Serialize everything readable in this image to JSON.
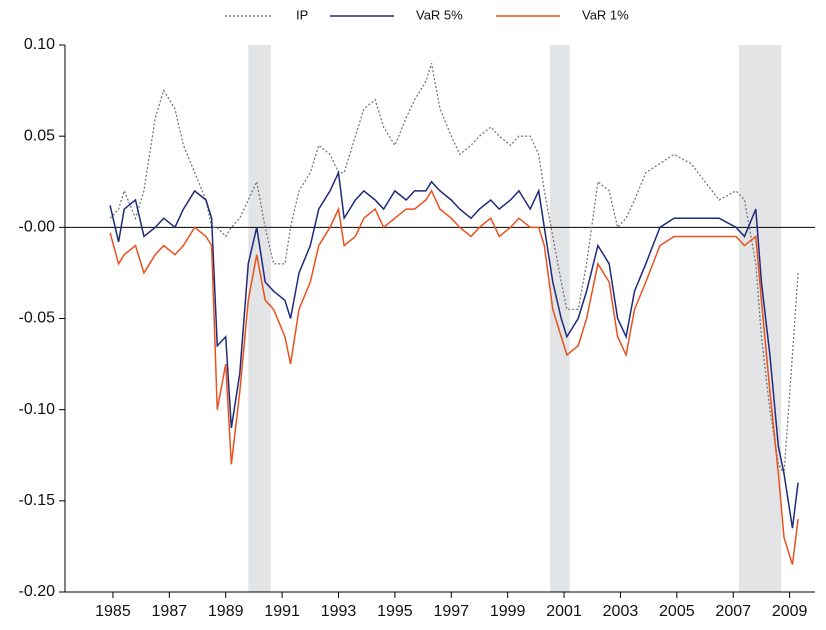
{
  "chart_data": {
    "type": "line",
    "x": [
      1984.9,
      1985.2,
      1985.4,
      1985.8,
      1986.1,
      1986.5,
      1986.8,
      1987.2,
      1987.5,
      1987.9,
      1988.3,
      1988.5,
      1988.7,
      1989.0,
      1989.2,
      1989.5,
      1989.8,
      1990.1,
      1990.4,
      1990.7,
      1991.1,
      1991.3,
      1991.6,
      1992.0,
      1992.3,
      1992.7,
      1993.0,
      1993.2,
      1993.6,
      1993.9,
      1994.3,
      1994.6,
      1995.0,
      1995.4,
      1995.7,
      1996.1,
      1996.3,
      1996.6,
      1997.0,
      1997.3,
      1997.7,
      1998.0,
      1998.4,
      1998.7,
      1999.1,
      1999.4,
      1999.8,
      2000.1,
      2000.3,
      2000.6,
      2000.9,
      2001.1,
      2001.5,
      2001.8,
      2002.2,
      2002.6,
      2002.9,
      2003.2,
      2003.5,
      2003.9,
      2004.4,
      2004.9,
      2005.5,
      2006.0,
      2006.5,
      2007.1,
      2007.4,
      2007.8,
      2008.0,
      2008.3,
      2008.6,
      2008.8,
      2009.1,
      2009.3
    ],
    "series": [
      {
        "name": "IP",
        "color": "#777777",
        "line_style": "dotted",
        "values": [
          0.005,
          0.01,
          0.02,
          0.005,
          0.02,
          0.06,
          0.075,
          0.065,
          0.045,
          0.03,
          0.015,
          0.0,
          0.0,
          -0.005,
          0.0,
          0.005,
          0.015,
          0.025,
          0.0,
          -0.02,
          -0.02,
          0.0,
          0.02,
          0.03,
          0.045,
          0.04,
          0.03,
          0.03,
          0.05,
          0.065,
          0.07,
          0.055,
          0.045,
          0.06,
          0.07,
          0.08,
          0.09,
          0.065,
          0.05,
          0.04,
          0.045,
          0.05,
          0.055,
          0.05,
          0.045,
          0.05,
          0.05,
          0.04,
          0.02,
          -0.005,
          -0.03,
          -0.045,
          -0.045,
          -0.02,
          0.025,
          0.02,
          0.0,
          0.005,
          0.015,
          0.03,
          0.035,
          0.04,
          0.035,
          0.025,
          0.015,
          0.02,
          0.015,
          -0.02,
          -0.06,
          -0.1,
          -0.13,
          -0.135,
          -0.07,
          -0.025
        ]
      },
      {
        "name": "VaR 5%",
        "color": "#1f2a7a",
        "line_style": "solid",
        "values": [
          0.012,
          -0.008,
          0.01,
          0.015,
          -0.005,
          0.0,
          0.005,
          0.0,
          0.01,
          0.02,
          0.015,
          0.005,
          -0.065,
          -0.06,
          -0.11,
          -0.08,
          -0.02,
          0.0,
          -0.03,
          -0.035,
          -0.04,
          -0.05,
          -0.025,
          -0.01,
          0.01,
          0.02,
          0.03,
          0.005,
          0.015,
          0.02,
          0.015,
          0.01,
          0.02,
          0.015,
          0.02,
          0.02,
          0.025,
          0.02,
          0.015,
          0.01,
          0.005,
          0.01,
          0.015,
          0.01,
          0.015,
          0.02,
          0.01,
          0.02,
          0.0,
          -0.03,
          -0.05,
          -0.06,
          -0.05,
          -0.035,
          -0.01,
          -0.02,
          -0.05,
          -0.06,
          -0.035,
          -0.02,
          0.0,
          0.005,
          0.005,
          0.005,
          0.005,
          0.0,
          -0.005,
          0.01,
          -0.03,
          -0.07,
          -0.12,
          -0.135,
          -0.165,
          -0.14
        ]
      },
      {
        "name": "VaR 1%",
        "color": "#e8521e",
        "line_style": "solid",
        "values": [
          -0.003,
          -0.02,
          -0.015,
          -0.01,
          -0.025,
          -0.015,
          -0.01,
          -0.015,
          -0.01,
          0.0,
          -0.005,
          -0.01,
          -0.1,
          -0.075,
          -0.13,
          -0.09,
          -0.04,
          -0.015,
          -0.04,
          -0.045,
          -0.06,
          -0.075,
          -0.045,
          -0.03,
          -0.01,
          0.0,
          0.01,
          -0.01,
          -0.005,
          0.005,
          0.01,
          0.0,
          0.005,
          0.01,
          0.01,
          0.015,
          0.02,
          0.01,
          0.005,
          0.0,
          -0.005,
          0.0,
          0.005,
          -0.005,
          0.0,
          0.005,
          0.0,
          0.0,
          -0.01,
          -0.045,
          -0.06,
          -0.07,
          -0.065,
          -0.05,
          -0.02,
          -0.03,
          -0.06,
          -0.07,
          -0.045,
          -0.03,
          -0.01,
          -0.005,
          -0.005,
          -0.005,
          -0.005,
          -0.005,
          -0.01,
          -0.005,
          -0.04,
          -0.09,
          -0.135,
          -0.17,
          -0.185,
          -0.16
        ]
      }
    ],
    "shaded_periods": [
      [
        1989.8,
        1990.6
      ],
      [
        2000.5,
        2001.2
      ],
      [
        2007.2,
        2008.7
      ]
    ],
    "shade_color": "#e3e4e6",
    "zero_line": true,
    "xlim": [
      1983.3,
      2009.9
    ],
    "xticks": [
      1985,
      1987,
      1989,
      1991,
      1993,
      1995,
      1997,
      1999,
      2001,
      2003,
      2005,
      2007,
      2009
    ],
    "ylim": [
      -0.2,
      0.1
    ],
    "yticks": [
      {
        "value": 0.1,
        "label": "0.10"
      },
      {
        "value": 0.05,
        "label": "0.05"
      },
      {
        "value": 0,
        "label": "-0.00"
      },
      {
        "value": -0.05,
        "label": "-0.05"
      },
      {
        "value": -0.1,
        "label": "-0.10"
      },
      {
        "value": -0.15,
        "label": "-0.15"
      },
      {
        "value": -0.2,
        "label": "-0.20"
      }
    ]
  }
}
